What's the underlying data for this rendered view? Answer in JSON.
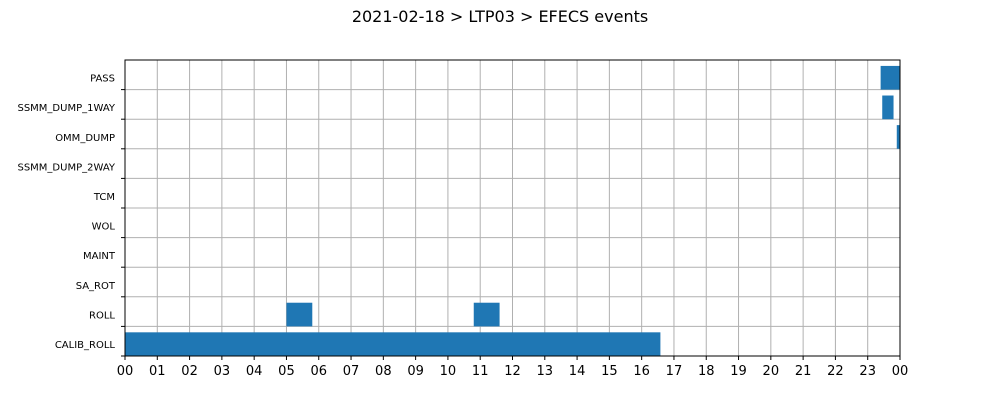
{
  "chart_data": {
    "type": "bar",
    "orientation": "horizontal-timeline",
    "title": "2021-02-18 > LTP03 > EFECS events",
    "xlabel": "",
    "ylabel": "",
    "xlim": [
      0,
      24
    ],
    "x_tick_labels": [
      "00",
      "01",
      "02",
      "03",
      "04",
      "05",
      "06",
      "07",
      "08",
      "09",
      "10",
      "11",
      "12",
      "13",
      "14",
      "15",
      "16",
      "17",
      "18",
      "19",
      "20",
      "21",
      "22",
      "23",
      "00"
    ],
    "categories": [
      "CALIB_ROLL",
      "ROLL",
      "SA_ROT",
      "MAINT",
      "WOL",
      "TCM",
      "SSMM_DUMP_2WAY",
      "OMM_DUMP",
      "SSMM_DUMP_1WAY",
      "PASS"
    ],
    "grid": true,
    "bar_color": "#1f77b4",
    "events": [
      {
        "category": "CALIB_ROLL",
        "start": 0.0,
        "end": 16.58
      },
      {
        "category": "ROLL",
        "start": 5.0,
        "end": 5.8
      },
      {
        "category": "ROLL",
        "start": 10.8,
        "end": 11.6
      },
      {
        "category": "OMM_DUMP",
        "start": 23.9,
        "end": 24.0
      },
      {
        "category": "SSMM_DUMP_1WAY",
        "start": 23.45,
        "end": 23.8
      },
      {
        "category": "PASS",
        "start": 23.4,
        "end": 24.0
      }
    ]
  }
}
